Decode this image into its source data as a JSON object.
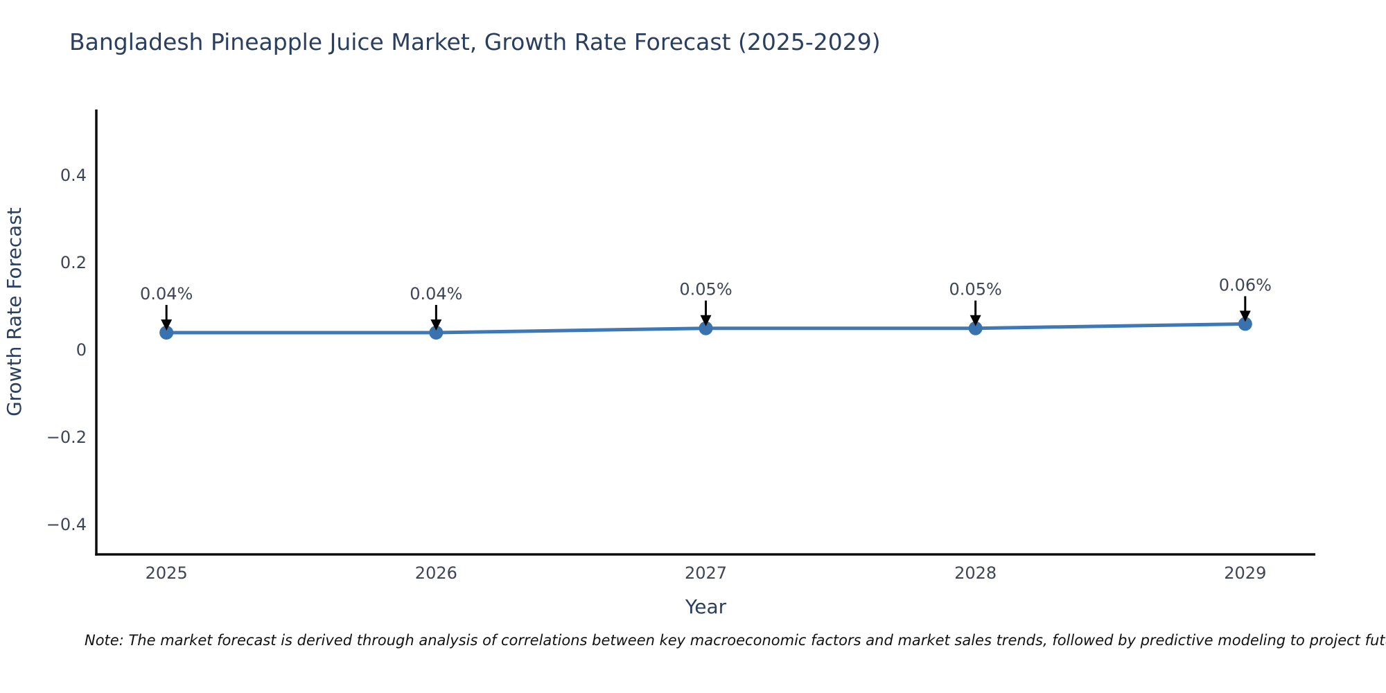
{
  "chart_data": {
    "type": "line",
    "title": "Bangladesh Pineapple Juice Market, Growth Rate Forecast (2025-2029)",
    "xlabel": "Year",
    "ylabel": "Growth Rate Forecast",
    "x": [
      2025,
      2026,
      2027,
      2028,
      2029
    ],
    "values": [
      0.04,
      0.04,
      0.05,
      0.05,
      0.06
    ],
    "point_labels": [
      "0.04%",
      "0.04%",
      "0.05%",
      "0.05%",
      "0.06%"
    ],
    "xtick_labels": [
      "2025",
      "2026",
      "2027",
      "2028",
      "2029"
    ],
    "yticks": [
      0.4,
      0.2,
      0,
      -0.2,
      -0.4
    ],
    "ytick_labels": [
      "0.4",
      "0.2",
      "0",
      "−0.2",
      "−0.4"
    ],
    "xlim": [
      2024.74,
      2029.26
    ],
    "ylim": [
      -0.468,
      0.548
    ],
    "grid": false,
    "legend": "none",
    "line_color": "#3f79b5",
    "marker_color": "#3a72ad",
    "axis_color": "#0d0d0d",
    "tick_color": "#3d4557",
    "title_color": "#2a3f5f",
    "annotation_color": "#3d4557",
    "arrow_color": "#000000"
  },
  "note": {
    "text": "Note: The market forecast is derived through analysis of correlations between key macroeconomic factors and market sales trends, followed by predictive modeling to project future sa"
  }
}
